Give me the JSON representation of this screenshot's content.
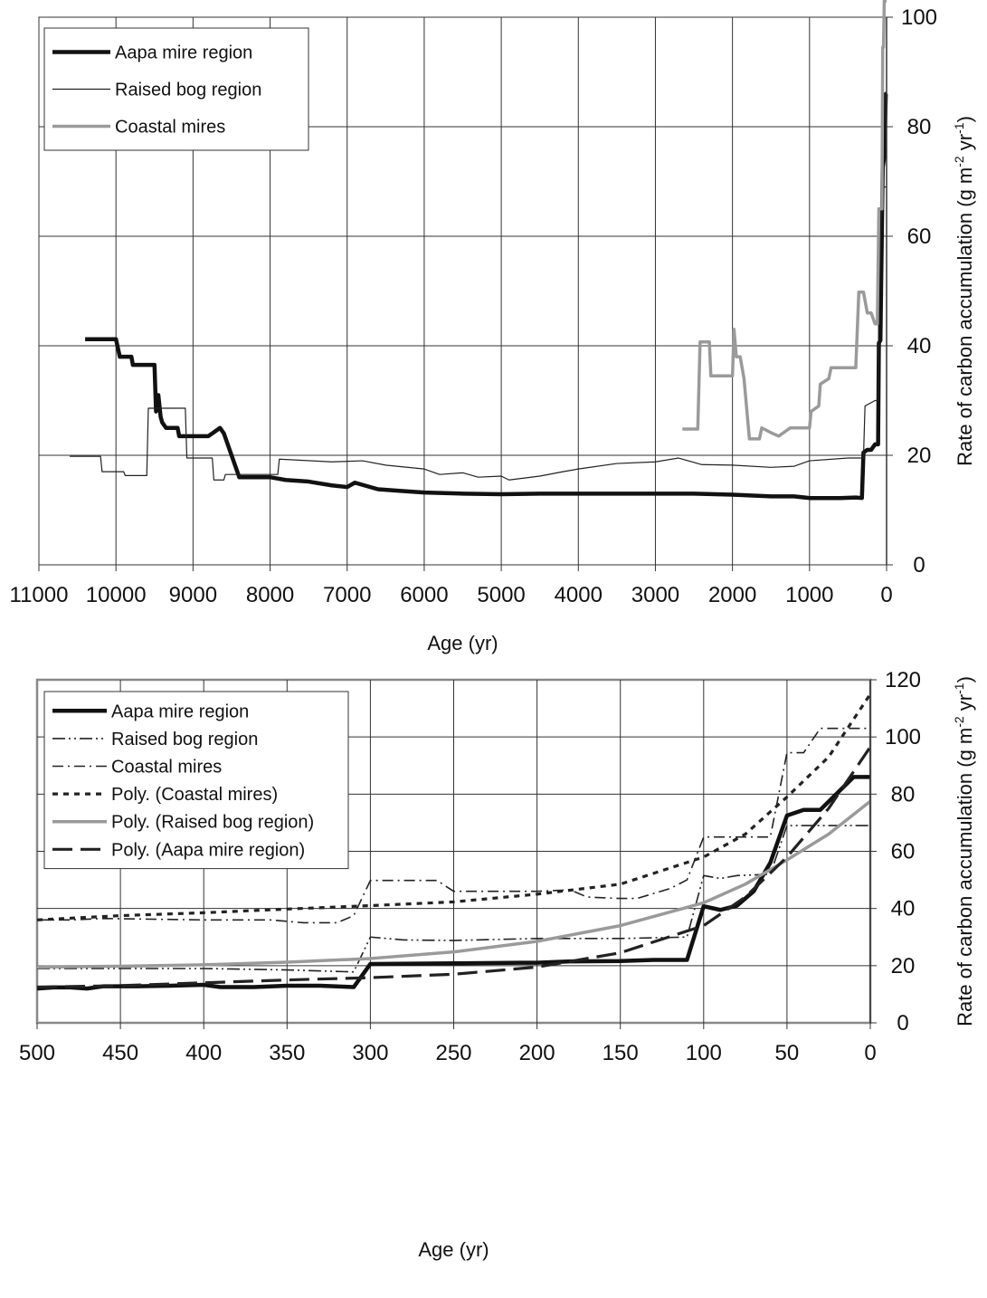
{
  "chart_data": [
    {
      "type": "line",
      "title": "",
      "xlabel": "Age (yr)",
      "ylabel": "Rate of carbon accumulation (g m-2 yr-1)",
      "ylabel_parts": [
        "Rate of carbon accumulation (g m",
        "-2",
        " yr",
        "-1",
        ")"
      ],
      "xlim": [
        11000,
        0
      ],
      "ylim": [
        0,
        100
      ],
      "x_ticks": [
        "11000",
        "10000",
        "9000",
        "8000",
        "7000",
        "6000",
        "5000",
        "4000",
        "3000",
        "2000",
        "1000",
        "0"
      ],
      "y_ticks": [
        "0",
        "20",
        "40",
        "60",
        "80",
        "100"
      ],
      "grid": true,
      "legend_position": "top-left",
      "series": [
        {
          "name": "Aapa mire region",
          "style": "thick-solid",
          "color": "#111111",
          "points": [
            [
              10400,
              41.2
            ],
            [
              10000,
              41.2
            ],
            [
              9950,
              38
            ],
            [
              9800,
              38
            ],
            [
              9780,
              36.5
            ],
            [
              9500,
              36.5
            ],
            [
              9480,
              28
            ],
            [
              9450,
              31
            ],
            [
              9420,
              27
            ],
            [
              9400,
              26
            ],
            [
              9350,
              25
            ],
            [
              9200,
              25
            ],
            [
              9180,
              23.5
            ],
            [
              8800,
              23.5
            ],
            [
              8650,
              25
            ],
            [
              8600,
              24
            ],
            [
              8550,
              22
            ],
            [
              8500,
              20
            ],
            [
              8450,
              18
            ],
            [
              8400,
              16
            ],
            [
              8000,
              16
            ],
            [
              7800,
              15.5
            ],
            [
              7500,
              15.2
            ],
            [
              7200,
              14.5
            ],
            [
              7000,
              14.2
            ],
            [
              6900,
              15
            ],
            [
              6600,
              13.8
            ],
            [
              6300,
              13.5
            ],
            [
              6000,
              13.2
            ],
            [
              5500,
              13
            ],
            [
              5000,
              12.9
            ],
            [
              4500,
              13
            ],
            [
              4000,
              13
            ],
            [
              3500,
              13
            ],
            [
              3000,
              13
            ],
            [
              2500,
              13
            ],
            [
              2000,
              12.8
            ],
            [
              1500,
              12.5
            ],
            [
              1200,
              12.5
            ],
            [
              1000,
              12.2
            ],
            [
              600,
              12.2
            ],
            [
              400,
              12.3
            ],
            [
              320,
              12.2
            ],
            [
              300,
              20.5
            ],
            [
              250,
              21
            ],
            [
              200,
              21
            ],
            [
              150,
              22
            ],
            [
              110,
              22
            ],
            [
              100,
              40.5
            ],
            [
              80,
              41
            ],
            [
              50,
              72.6
            ],
            [
              30,
              74.5
            ],
            [
              10,
              86
            ],
            [
              0,
              86
            ]
          ]
        },
        {
          "name": "Raised bog region",
          "style": "thin-solid",
          "color": "#222222",
          "points": [
            [
              10600,
              19.8
            ],
            [
              10200,
              19.8
            ],
            [
              10180,
              17
            ],
            [
              9900,
              17
            ],
            [
              9880,
              16.3
            ],
            [
              9600,
              16.3
            ],
            [
              9580,
              28.6
            ],
            [
              9100,
              28.6
            ],
            [
              9080,
              19.5
            ],
            [
              8750,
              19.5
            ],
            [
              8730,
              15.5
            ],
            [
              8600,
              15.5
            ],
            [
              8580,
              16.5
            ],
            [
              7900,
              16.5
            ],
            [
              7880,
              19.3
            ],
            [
              7200,
              18.8
            ],
            [
              6800,
              19
            ],
            [
              6500,
              18.2
            ],
            [
              6000,
              17.5
            ],
            [
              5800,
              16.5
            ],
            [
              5500,
              16.8
            ],
            [
              5300,
              16
            ],
            [
              5000,
              16.2
            ],
            [
              4900,
              15.5
            ],
            [
              4500,
              16.2
            ],
            [
              4200,
              17
            ],
            [
              4000,
              17.5
            ],
            [
              3500,
              18.5
            ],
            [
              3000,
              18.8
            ],
            [
              2700,
              19.5
            ],
            [
              2400,
              18.3
            ],
            [
              2000,
              18.2
            ],
            [
              1500,
              17.8
            ],
            [
              1200,
              18
            ],
            [
              1000,
              19
            ],
            [
              500,
              19.5
            ],
            [
              300,
              19.5
            ],
            [
              280,
              29
            ],
            [
              150,
              30
            ],
            [
              110,
              30
            ],
            [
              100,
              51
            ],
            [
              50,
              69
            ],
            [
              0,
              69
            ]
          ]
        },
        {
          "name": "Coastal mires",
          "style": "grey-thick",
          "color": "#9a9a9a",
          "points": [
            [
              2650,
              24.8
            ],
            [
              2450,
              24.8
            ],
            [
              2420,
              40.7
            ],
            [
              2300,
              40.7
            ],
            [
              2280,
              34.5
            ],
            [
              2000,
              34.5
            ],
            [
              1980,
              43
            ],
            [
              1950,
              38
            ],
            [
              1900,
              38
            ],
            [
              1850,
              34
            ],
            [
              1780,
              23
            ],
            [
              1650,
              23
            ],
            [
              1620,
              25
            ],
            [
              1480,
              24
            ],
            [
              1400,
              23.5
            ],
            [
              1250,
              25
            ],
            [
              1000,
              25
            ],
            [
              980,
              28
            ],
            [
              880,
              29
            ],
            [
              860,
              33
            ],
            [
              750,
              34
            ],
            [
              720,
              36
            ],
            [
              400,
              36
            ],
            [
              360,
              49.8
            ],
            [
              300,
              49.8
            ],
            [
              250,
              46
            ],
            [
              200,
              46
            ],
            [
              150,
              44
            ],
            [
              120,
              44
            ],
            [
              100,
              65
            ],
            [
              60,
              65
            ],
            [
              50,
              94.5
            ],
            [
              40,
              94.5
            ],
            [
              30,
              103
            ],
            [
              10,
              103
            ],
            [
              0,
              103
            ]
          ]
        }
      ]
    },
    {
      "type": "line",
      "title": "",
      "xlabel": "Age (yr)",
      "ylabel": "Rate of carbon accumulation (g m-2 yr-1)",
      "ylabel_parts": [
        "Rate of carbon accumulation (g m",
        "-2",
        " yr",
        "-1",
        ")"
      ],
      "xlim": [
        500,
        0
      ],
      "ylim": [
        0,
        120
      ],
      "x_ticks": [
        "500",
        "450",
        "400",
        "350",
        "300",
        "250",
        "200",
        "150",
        "100",
        "50",
        "0"
      ],
      "y_ticks": [
        "0",
        "20",
        "40",
        "60",
        "80",
        "100",
        "120"
      ],
      "grid": true,
      "legend_position": "top-left",
      "series": [
        {
          "name": "Aapa mire region",
          "style": "thick-solid",
          "color": "#111111",
          "points": [
            [
              500,
              12
            ],
            [
              490,
              12.4
            ],
            [
              480,
              12.4
            ],
            [
              470,
              12
            ],
            [
              460,
              12.8
            ],
            [
              450,
              12.8
            ],
            [
              440,
              12.8
            ],
            [
              420,
              13
            ],
            [
              400,
              13.3
            ],
            [
              390,
              12.5
            ],
            [
              370,
              12.5
            ],
            [
              350,
              13
            ],
            [
              330,
              13
            ],
            [
              310,
              12.5
            ],
            [
              300,
              20.6
            ],
            [
              250,
              20.8
            ],
            [
              210,
              21
            ],
            [
              200,
              21
            ],
            [
              180,
              21.5
            ],
            [
              150,
              21.6
            ],
            [
              130,
              22
            ],
            [
              110,
              22
            ],
            [
              100,
              40.8
            ],
            [
              90,
              39.5
            ],
            [
              80,
              41
            ],
            [
              70,
              46
            ],
            [
              60,
              56
            ],
            [
              50,
              72.5
            ],
            [
              40,
              74.5
            ],
            [
              30,
              74.5
            ],
            [
              10,
              86
            ],
            [
              0,
              86
            ]
          ]
        },
        {
          "name": "Raised bog region",
          "style": "dash-dot-dot",
          "color": "#222222",
          "points": [
            [
              500,
              19
            ],
            [
              450,
              19
            ],
            [
              400,
              19
            ],
            [
              350,
              18.5
            ],
            [
              310,
              17.8
            ],
            [
              300,
              30
            ],
            [
              280,
              29
            ],
            [
              250,
              28.8
            ],
            [
              200,
              29.5
            ],
            [
              150,
              29.5
            ],
            [
              110,
              30
            ],
            [
              100,
              51.5
            ],
            [
              90,
              50.5
            ],
            [
              80,
              51.5
            ],
            [
              60,
              52
            ],
            [
              50,
              69
            ],
            [
              40,
              69
            ],
            [
              30,
              69
            ],
            [
              0,
              69
            ]
          ]
        },
        {
          "name": "Coastal mires",
          "style": "dash-dot",
          "color": "#222222",
          "points": [
            [
              500,
              36
            ],
            [
              480,
              36
            ],
            [
              460,
              36.5
            ],
            [
              400,
              36
            ],
            [
              360,
              36
            ],
            [
              340,
              35
            ],
            [
              320,
              35
            ],
            [
              310,
              37.5
            ],
            [
              300,
              49.8
            ],
            [
              270,
              49.8
            ],
            [
              260,
              49.8
            ],
            [
              250,
              46
            ],
            [
              200,
              46
            ],
            [
              180,
              46.5
            ],
            [
              170,
              44
            ],
            [
              150,
              43.5
            ],
            [
              140,
              43.5
            ],
            [
              120,
              47
            ],
            [
              110,
              50
            ],
            [
              100,
              65
            ],
            [
              90,
              65
            ],
            [
              60,
              65
            ],
            [
              50,
              94.5
            ],
            [
              40,
              94.5
            ],
            [
              30,
              103
            ],
            [
              20,
              103
            ],
            [
              0,
              103
            ]
          ]
        },
        {
          "name": "Poly. (Coastal mires)",
          "style": "short-dash",
          "color": "#222222",
          "points": [
            [
              500,
              36
            ],
            [
              450,
              37.5
            ],
            [
              400,
              38.5
            ],
            [
              350,
              39.8
            ],
            [
              300,
              41
            ],
            [
              250,
              42.3
            ],
            [
              200,
              45
            ],
            [
              150,
              48.5
            ],
            [
              100,
              58
            ],
            [
              75,
              66
            ],
            [
              50,
              79
            ],
            [
              25,
              93
            ],
            [
              0,
              115
            ]
          ]
        },
        {
          "name": "Poly. (Raised bog region)",
          "style": "grey-thick",
          "color": "#9a9a9a",
          "points": [
            [
              500,
              19.5
            ],
            [
              450,
              19.8
            ],
            [
              400,
              20.3
            ],
            [
              350,
              21.2
            ],
            [
              300,
              22.5
            ],
            [
              250,
              24.8
            ],
            [
              200,
              28.5
            ],
            [
              150,
              34
            ],
            [
              100,
              42
            ],
            [
              75,
              48.5
            ],
            [
              50,
              57
            ],
            [
              25,
              66
            ],
            [
              0,
              77.5
            ]
          ]
        },
        {
          "name": "Poly. (Aapa mire region)",
          "style": "long-dash",
          "color": "#222222",
          "points": [
            [
              500,
              12.5
            ],
            [
              450,
              13
            ],
            [
              400,
              14
            ],
            [
              350,
              15
            ],
            [
              300,
              15.8
            ],
            [
              250,
              17
            ],
            [
              200,
              19.5
            ],
            [
              150,
              24.5
            ],
            [
              100,
              34
            ],
            [
              75,
              44
            ],
            [
              50,
              58
            ],
            [
              25,
              75
            ],
            [
              0,
              96.5
            ]
          ]
        }
      ]
    }
  ]
}
